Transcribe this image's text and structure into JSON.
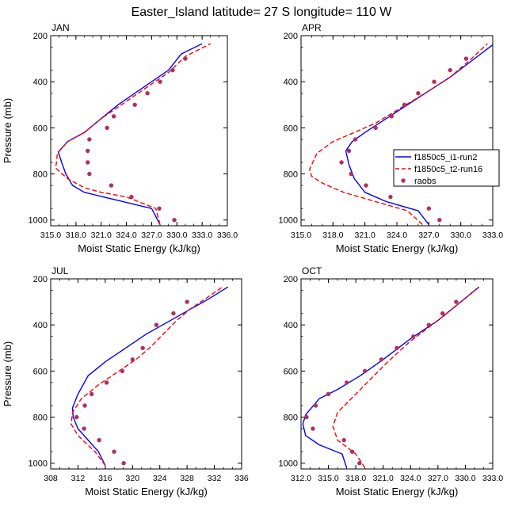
{
  "figure_title": "Easter_Island  latitude= 27 S longitude= 110 W",
  "colors": {
    "model1": "#0000ff",
    "model2": "#ff0000",
    "obs": "#b03060",
    "axis": "#000000"
  },
  "chart_data": [
    {
      "type": "line",
      "panel": "JAN",
      "title": "JAN",
      "xlabel": "Moist Static Energy (kJ/kg)",
      "ylabel": "Pressure (mb)",
      "xlim": [
        315,
        336
      ],
      "ylim": [
        1025,
        200
      ],
      "xticks": [
        315,
        318,
        321,
        324,
        327,
        330,
        333,
        336
      ],
      "xtick_labels": [
        "315.0",
        "318.0",
        "321.0",
        "324.0",
        "327.0",
        "330.0",
        "333.0",
        "336.0"
      ],
      "yticks": [
        200,
        400,
        600,
        800,
        1000
      ],
      "ytick_labels": [
        "200",
        "400",
        "600",
        "800",
        "1000"
      ],
      "series": [
        {
          "name": "f1850c5_i1-run2",
          "style": "solid",
          "color": "#0000ff",
          "x": [
            328.0,
            327.0,
            319.0,
            317.6,
            316.8,
            316.3,
            315.9,
            317.0,
            319.0,
            321.0,
            323.0,
            325.0,
            327.0,
            329.0,
            330.5,
            333.0
          ],
          "y": [
            1020,
            950,
            880,
            850,
            800,
            750,
            705,
            660,
            620,
            560,
            500,
            450,
            400,
            350,
            280,
            235
          ]
        },
        {
          "name": "f1850c5_t2-run16",
          "style": "dashed",
          "color": "#ff0000",
          "x": [
            328.0,
            327.5,
            324.0,
            321.0,
            319.0,
            317.0,
            315.6,
            315.8,
            317.0,
            319.0,
            321.0,
            323.0,
            325.0,
            327.0,
            329.0,
            331.0,
            334.0
          ],
          "y": [
            1020,
            950,
            900,
            880,
            860,
            820,
            775,
            710,
            660,
            620,
            560,
            510,
            460,
            410,
            360,
            290,
            235
          ]
        },
        {
          "name": "raobs",
          "style": "markers",
          "color": "#b03060",
          "x": [
            329.7,
            327.9,
            324.6,
            322.2,
            319.6,
            319.4,
            319.4,
            319.6,
            321.7,
            322.5,
            325.0,
            326.5,
            328.0,
            329.5,
            331.0
          ],
          "y": [
            1000,
            950,
            900,
            850,
            800,
            750,
            700,
            650,
            600,
            550,
            500,
            450,
            400,
            350,
            300
          ]
        }
      ]
    },
    {
      "type": "line",
      "panel": "APR",
      "title": "APR",
      "xlabel": "Moist Static Energy (kJ/kg)",
      "ylabel": "",
      "xlim": [
        315,
        333
      ],
      "ylim": [
        1025,
        200
      ],
      "xticks": [
        315,
        318,
        321,
        324,
        327,
        330,
        333
      ],
      "xtick_labels": [
        "315.0",
        "318.0",
        "321.0",
        "324.0",
        "327.0",
        "330.0",
        "333.0"
      ],
      "yticks": [
        200,
        400,
        600,
        800,
        1000
      ],
      "ytick_labels": [
        "200",
        "400",
        "600",
        "800",
        "1000"
      ],
      "legend": {
        "position": "right",
        "entries": [
          "f1850c5_i1-run2",
          "f1850c5_t2-run16",
          "raobs"
        ]
      },
      "series": [
        {
          "name": "f1850c5_i1-run2",
          "style": "solid",
          "color": "#0000ff",
          "x": [
            327.0,
            326.0,
            323.0,
            321.0,
            320.0,
            319.5,
            319.2,
            319.8,
            321.0,
            323.0,
            325.0,
            327.0,
            329.0,
            331.0,
            333.0
          ],
          "y": [
            1020,
            960,
            920,
            880,
            820,
            760,
            700,
            660,
            620,
            560,
            500,
            440,
            380,
            310,
            240
          ]
        },
        {
          "name": "f1850c5_t2-run16",
          "style": "dashed",
          "color": "#ff0000",
          "x": [
            326.4,
            325.0,
            322.0,
            319.0,
            317.0,
            316.0,
            315.8,
            316.5,
            318.0,
            320.0,
            322.0,
            324.5,
            327.0,
            329.0,
            331.0,
            332.5
          ],
          "y": [
            1020,
            960,
            920,
            880,
            840,
            810,
            780,
            710,
            660,
            620,
            580,
            510,
            440,
            380,
            300,
            235
          ]
        },
        {
          "name": "raobs",
          "style": "markers",
          "color": "#b03060",
          "x": [
            328.0,
            327.0,
            323.4,
            321.1,
            319.7,
            318.8,
            319.5,
            320.1,
            322.0,
            323.5,
            324.7,
            326.0,
            327.5,
            329.0,
            330.5
          ],
          "y": [
            1000,
            950,
            900,
            850,
            800,
            750,
            700,
            650,
            600,
            550,
            500,
            450,
            400,
            350,
            300
          ]
        }
      ]
    },
    {
      "type": "line",
      "panel": "JUL",
      "title": "JUL",
      "xlabel": "Moist Static Energy (kJ/kg)",
      "ylabel": "Pressure (mb)",
      "xlim": [
        308,
        336
      ],
      "ylim": [
        1025,
        200
      ],
      "xticks": [
        308,
        312,
        316,
        320,
        324,
        328,
        332,
        336
      ],
      "xtick_labels": [
        "308",
        "312",
        "316",
        "320",
        "324",
        "328",
        "332",
        "336"
      ],
      "yticks": [
        200,
        400,
        600,
        800,
        1000
      ],
      "ytick_labels": [
        "200",
        "400",
        "600",
        "800",
        "1000"
      ],
      "series": [
        {
          "name": "f1850c5_i1-run2",
          "style": "solid",
          "color": "#0000ff",
          "x": [
            316.0,
            315.0,
            313.5,
            312.0,
            311.3,
            311.2,
            312.0,
            313.5,
            316.0,
            319.0,
            322.0,
            325.0,
            328.0,
            331.0,
            334.0
          ],
          "y": [
            1010,
            950,
            900,
            850,
            800,
            760,
            700,
            620,
            560,
            500,
            440,
            390,
            340,
            290,
            235
          ]
        },
        {
          "name": "f1850c5_t2-run16",
          "style": "dashed",
          "color": "#ff0000",
          "x": [
            316.0,
            314.5,
            312.0,
            311.0,
            311.2,
            312.5,
            315.0,
            318.0,
            320.5,
            322.5,
            324.5,
            326.5,
            328.5,
            331.0,
            333.2
          ],
          "y": [
            1010,
            950,
            880,
            830,
            780,
            720,
            660,
            600,
            550,
            500,
            440,
            380,
            330,
            280,
            235
          ]
        },
        {
          "name": "raobs",
          "style": "markers",
          "color": "#b03060",
          "x": [
            318.7,
            317.3,
            315.1,
            312.9,
            311.8,
            313.0,
            314.0,
            316.2,
            318.5,
            320.0,
            321.5,
            323.5,
            326.0,
            328.0
          ],
          "y": [
            1000,
            950,
            900,
            850,
            800,
            750,
            700,
            650,
            600,
            550,
            500,
            400,
            350,
            300
          ]
        }
      ]
    },
    {
      "type": "line",
      "panel": "OCT",
      "title": "OCT",
      "xlabel": "Moist Static Energy (kJ/kg)",
      "ylabel": "",
      "xlim": [
        312,
        333
      ],
      "ylim": [
        1025,
        200
      ],
      "xticks": [
        312,
        315,
        318,
        321,
        324,
        327,
        330,
        333
      ],
      "xtick_labels": [
        "312.0",
        "315.0",
        "318.0",
        "321.0",
        "324.0",
        "327.0",
        "330.0",
        "333.0"
      ],
      "yticks": [
        200,
        400,
        600,
        800,
        1000
      ],
      "ytick_labels": [
        "200",
        "400",
        "600",
        "800",
        "1000"
      ],
      "series": [
        {
          "name": "f1850c5_i1-run2",
          "style": "solid",
          "color": "#0000ff",
          "x": [
            317.0,
            316.5,
            314.0,
            312.5,
            312.2,
            312.5,
            314.0,
            316.0,
            318.5,
            321.0,
            324.0,
            327.0,
            329.5,
            331.5
          ],
          "y": [
            1020,
            960,
            920,
            880,
            830,
            790,
            720,
            680,
            620,
            550,
            460,
            380,
            300,
            235
          ]
        },
        {
          "name": "f1850c5_t2-run16",
          "style": "dashed",
          "color": "#ff0000",
          "x": [
            319.0,
            318.0,
            316.0,
            315.5,
            316.0,
            317.5,
            319.5,
            321.5,
            324.0,
            327.0,
            329.5,
            331.5
          ],
          "y": [
            1020,
            960,
            900,
            840,
            780,
            720,
            640,
            560,
            470,
            380,
            300,
            235
          ]
        },
        {
          "name": "raobs",
          "style": "markers",
          "color": "#b03060",
          "x": [
            318.4,
            317.6,
            316.7,
            313.3,
            312.6,
            313.6,
            315.0,
            317.0,
            319.0,
            320.8,
            322.5,
            324.3,
            326.0,
            327.5,
            329.0
          ],
          "y": [
            1000,
            950,
            900,
            850,
            800,
            750,
            700,
            650,
            600,
            550,
            500,
            450,
            400,
            350,
            300
          ]
        }
      ]
    }
  ]
}
